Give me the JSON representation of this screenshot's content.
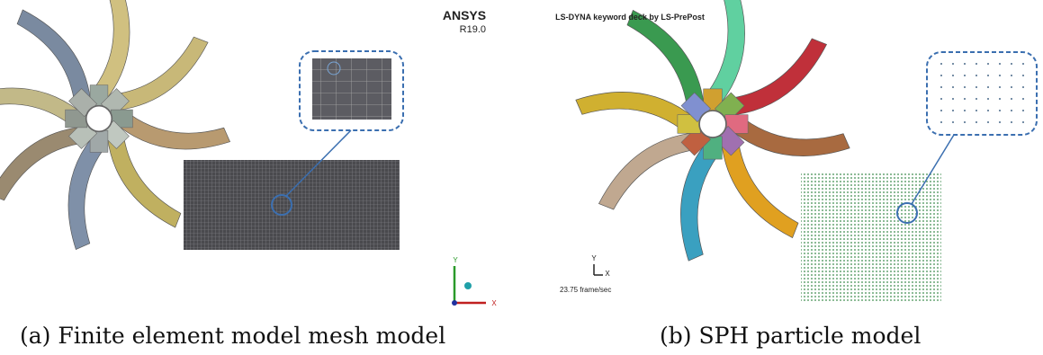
{
  "panels": [
    {
      "logo": "ANSYS",
      "version": "R19.0",
      "axis_y": "Y",
      "axis_x": "X",
      "caption": "(a) Finite element model mesh model"
    },
    {
      "header": "LS-DYNA keyword deck by LS-PrePost",
      "axis_y": "Y",
      "axis_x": "X",
      "frame_rate": "23.75 frame/sec",
      "caption": "(b) SPH particle model"
    }
  ]
}
